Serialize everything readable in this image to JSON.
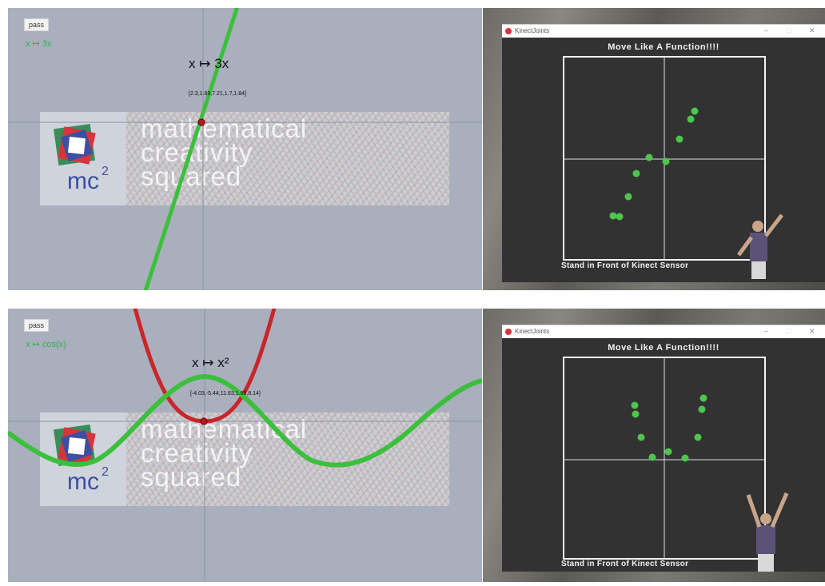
{
  "top": {
    "graph": {
      "pass_label": "pass",
      "function_label": "x ↦ 3x",
      "big_function": "x ↦ 3x",
      "coords": "[2.3,1.69,7.21,1.7,1.84]",
      "banner_words": [
        "mathematical",
        "creativity",
        "squared"
      ],
      "logo_text": "mc",
      "logo_sup": "2",
      "curve_colors": {
        "line": "#3cbf3c",
        "point": "#c2141c"
      }
    },
    "kinect": {
      "window_title": "KinectJoints",
      "heading": "Move Like A Function!!!!",
      "footer": "Stand in Front of Kinect Sensor",
      "dot_color": "#4cc64c"
    }
  },
  "bottom": {
    "graph": {
      "pass_label": "pass",
      "function_label": "x ↦ cos(x)",
      "big_function": "x ↦ x²",
      "coords": "[-4.03,-5.44,11.63,1.65,8.14]",
      "banner_words": [
        "mathematical",
        "creativity",
        "squared"
      ],
      "logo_text": "mc",
      "logo_sup": "2",
      "curve_colors": {
        "parabola": "#c8262a",
        "cosine": "#3cbf3c"
      }
    },
    "kinect": {
      "window_title": "KinectJoints",
      "heading": "Move Like A Function!!!!",
      "footer": "Stand in Front of Kinect Sensor",
      "dot_color": "#4cc64c"
    }
  },
  "window_controls": {
    "minimize": "–",
    "maximize": "□",
    "close": "✕"
  }
}
